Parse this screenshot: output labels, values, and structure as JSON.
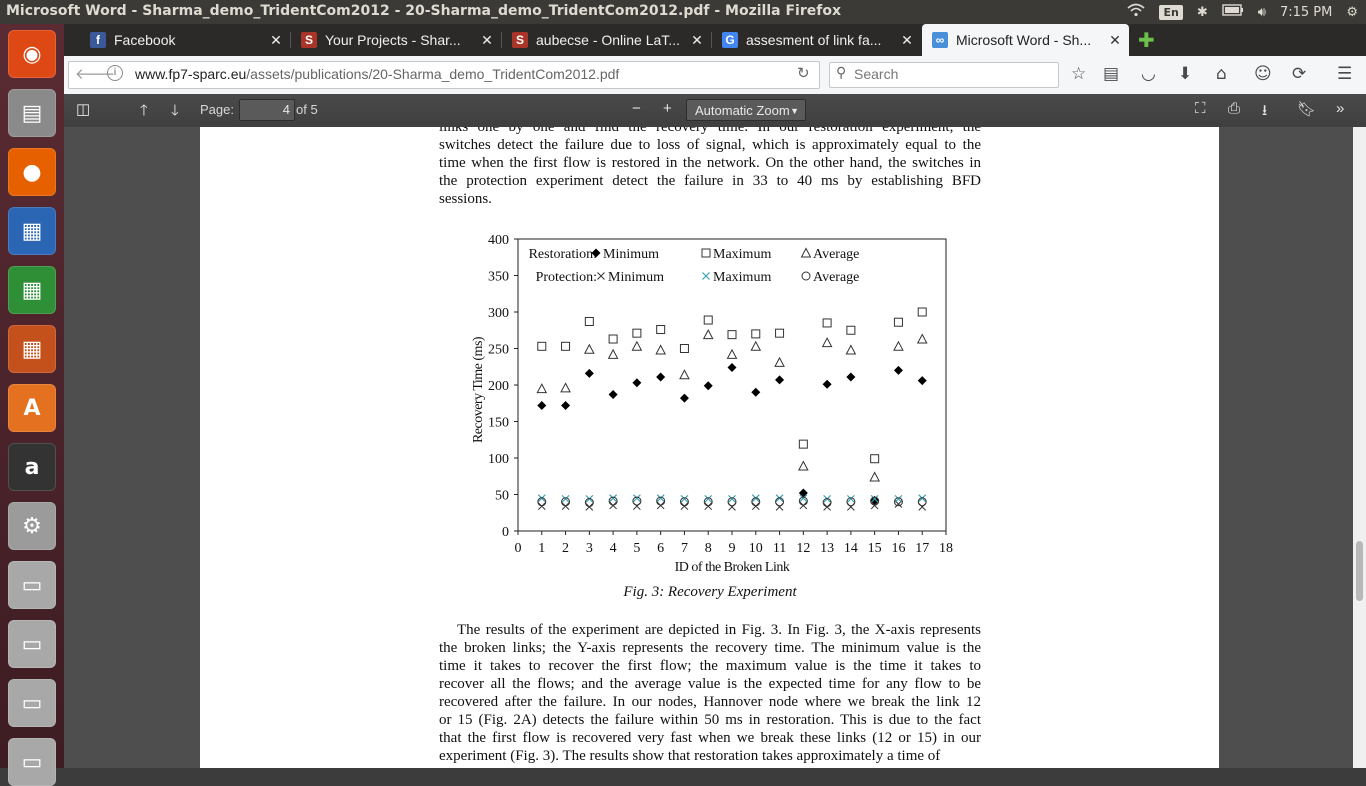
{
  "window_title": "Microsoft Word - Sharma_demo_TridentCom2012 - 20-Sharma_demo_TridentCom2012.pdf - Mozilla Firefox",
  "tray": {
    "language": "En",
    "time": "7:15 PM"
  },
  "launcher": [
    {
      "name": "ubuntu-dash-icon",
      "color": "#dd4814",
      "glyph": "◉"
    },
    {
      "name": "files-icon",
      "color": "#8a8a8a",
      "glyph": "▤"
    },
    {
      "name": "firefox-icon",
      "color": "#e66000",
      "glyph": "●"
    },
    {
      "name": "writer-icon",
      "color": "#2b66b5",
      "glyph": "▦"
    },
    {
      "name": "calc-icon",
      "color": "#2f8f36",
      "glyph": "▦"
    },
    {
      "name": "impress-icon",
      "color": "#c4501c",
      "glyph": "▦"
    },
    {
      "name": "software-center-icon",
      "color": "#e4711f",
      "glyph": "A"
    },
    {
      "name": "amazon-icon",
      "color": "#333333",
      "glyph": "a"
    },
    {
      "name": "settings-icon",
      "color": "#9b9b9b",
      "glyph": "⚙"
    },
    {
      "name": "drive-icon",
      "color": "#a8a8a8",
      "glyph": "▭"
    },
    {
      "name": "drive-icon",
      "color": "#a8a8a8",
      "glyph": "▭"
    },
    {
      "name": "drive-icon",
      "color": "#a8a8a8",
      "glyph": "▭"
    },
    {
      "name": "trash-icon",
      "color": "#a8a8a8",
      "glyph": "▭"
    }
  ],
  "tabs": [
    {
      "label": "Facebook",
      "icon": "f",
      "icon_color": "#3b5998",
      "active": false
    },
    {
      "label": "Your Projects - Shar...",
      "icon": "S",
      "icon_color": "#a93529",
      "active": false
    },
    {
      "label": "aubecse - Online LaT...",
      "icon": "S",
      "icon_color": "#a93529",
      "active": false
    },
    {
      "label": "assesment of link fa...",
      "icon": "G",
      "icon_color": "#4285f4",
      "active": false
    },
    {
      "label": "Microsoft Word - Sh...",
      "icon": "∞",
      "icon_color": "#4a90d9",
      "active": true
    }
  ],
  "navbar": {
    "url_host": "www.fp7-sparc.eu",
    "url_path": "/assets/publications/20-Sharma_demo_TridentCom2012.pdf",
    "search_placeholder": "Search"
  },
  "pdf_toolbar": {
    "page_label": "Page:",
    "page_value": "4",
    "page_total": "of 5",
    "zoom": "Automatic Zoom"
  },
  "document": {
    "para1_lines": [
      "links one by one and find the recovery time. In our restoration experiment, the",
      "switches detect the failure due to loss of signal, which is approximately equal to the",
      "time when the first flow is restored in the network. On the other hand, the switches in",
      "the protection experiment detect the failure in 33 to 40 ms by establishing BFD",
      "sessions."
    ],
    "caption": "Fig. 3: Recovery Experiment",
    "para2_lines": [
      "The results of the experiment are depicted in Fig. 3. In Fig. 3, the X-axis represents",
      "the broken links; the Y-axis represents the recovery time. The minimum value is the",
      "time it takes to recover the first flow; the maximum value is the time it takes to",
      "recover all the flows; and the average value is the expected time for any flow to be",
      "recovered after the failure. In our nodes, Hannover node where we break the link 12",
      "or 15 (Fig. 2A) detects the failure within 50 ms in restoration. This is due to the fact",
      "that the first flow is recovered very fast when we break these links (12 or 15) in our",
      "experiment (Fig. 3). The results show that restoration takes approximately a time of"
    ]
  },
  "chart_data": {
    "type": "scatter",
    "xlabel": "ID of the Broken Link",
    "ylabel": "Recovery Time (ms)",
    "xlim": [
      0,
      18
    ],
    "ylim": [
      0,
      400
    ],
    "xticks": [
      0,
      1,
      2,
      3,
      4,
      5,
      6,
      7,
      8,
      9,
      10,
      11,
      12,
      13,
      14,
      15,
      16,
      17,
      18
    ],
    "yticks": [
      0,
      50,
      100,
      150,
      200,
      250,
      300,
      350,
      400
    ],
    "legend_groups": [
      "Restoration:",
      "Protection:"
    ],
    "x": [
      1,
      2,
      3,
      4,
      5,
      6,
      7,
      8,
      9,
      10,
      11,
      12,
      13,
      14,
      15,
      16,
      17
    ],
    "series": [
      {
        "name": "Minimum",
        "group": "Restoration",
        "marker": "diamond",
        "values": [
          172,
          172,
          216,
          187,
          203,
          211,
          182,
          199,
          224,
          190,
          207,
          52,
          201,
          211,
          42,
          220,
          206
        ]
      },
      {
        "name": "Maximum",
        "group": "Restoration",
        "marker": "square",
        "values": [
          253,
          253,
          287,
          263,
          271,
          276,
          250,
          289,
          269,
          270,
          271,
          119,
          285,
          275,
          99,
          286,
          300
        ]
      },
      {
        "name": "Average",
        "group": "Restoration",
        "marker": "triangle",
        "values": [
          195,
          196,
          249,
          242,
          253,
          248,
          214,
          269,
          242,
          253,
          231,
          89,
          258,
          248,
          74,
          253,
          263
        ]
      },
      {
        "name": "Minimum",
        "group": "Protection",
        "marker": "x",
        "values": [
          34,
          34,
          33,
          35,
          34,
          35,
          34,
          34,
          33,
          34,
          33,
          35,
          33,
          33,
          35,
          37,
          33
        ]
      },
      {
        "name": "Maximum",
        "group": "Protection",
        "marker": "x-teal",
        "values": [
          45,
          44,
          44,
          45,
          45,
          45,
          44,
          44,
          44,
          45,
          45,
          45,
          44,
          44,
          44,
          44,
          45
        ]
      },
      {
        "name": "Average",
        "group": "Protection",
        "marker": "circle",
        "values": [
          40,
          40,
          39,
          41,
          41,
          41,
          40,
          40,
          40,
          40,
          40,
          41,
          39,
          40,
          41,
          40,
          40
        ]
      }
    ]
  }
}
